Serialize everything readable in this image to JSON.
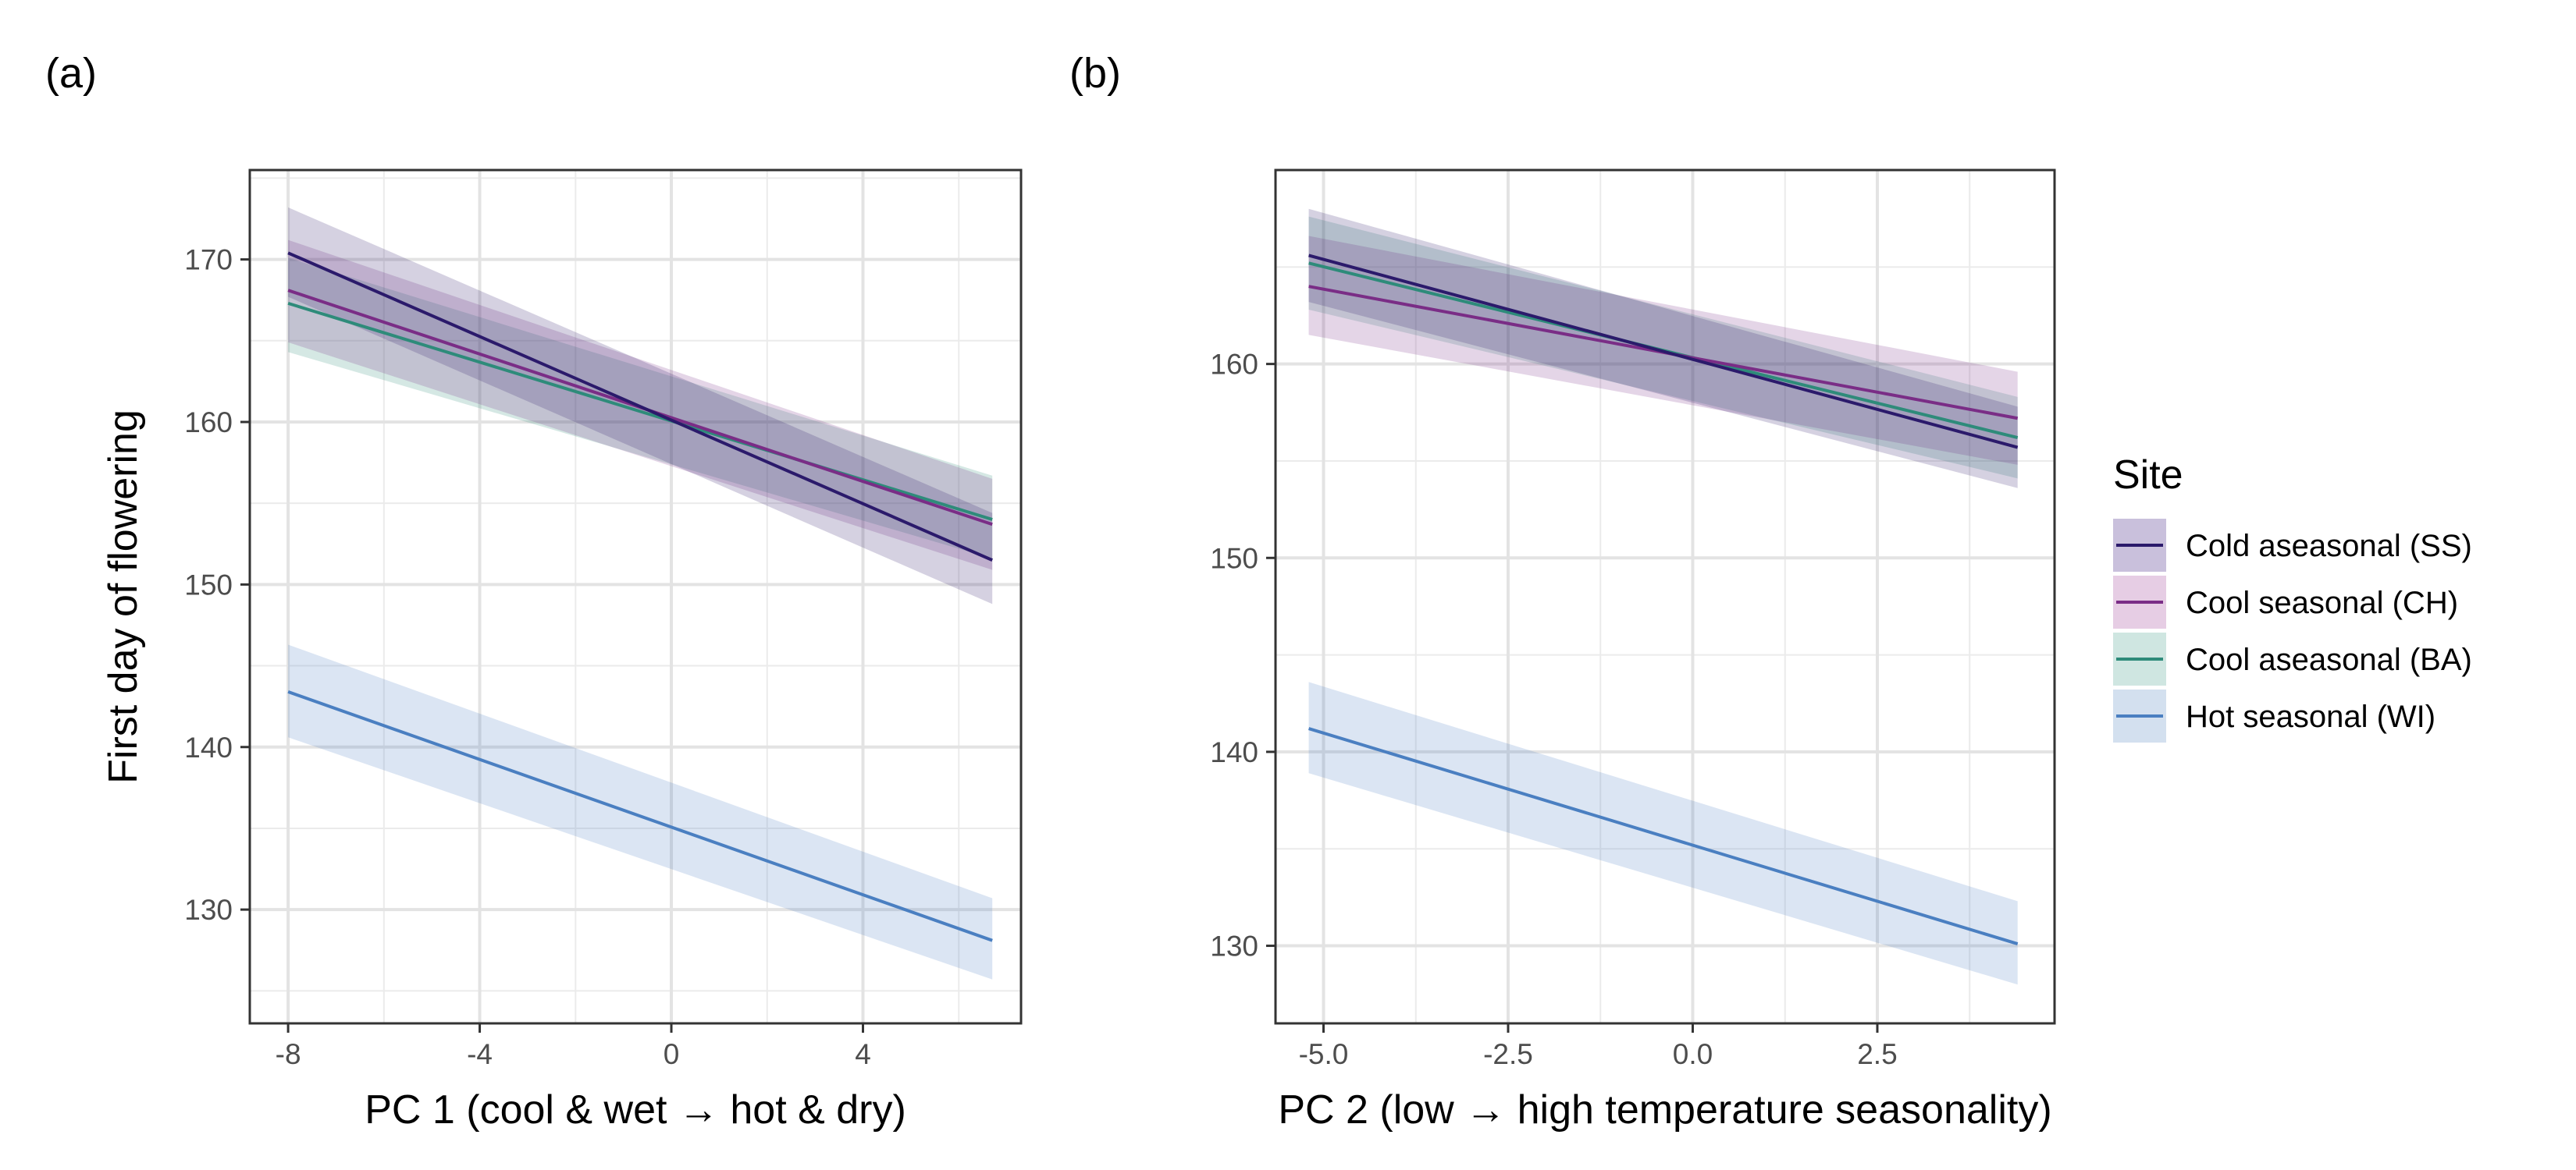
{
  "figure": {
    "legend": {
      "title": "Site",
      "entries": [
        {
          "label": "Cold aseasonal (SS)",
          "color": "#2b1a6b"
        },
        {
          "label": "Cool seasonal (CH)",
          "color": "#7a2d86"
        },
        {
          "label": "Cool aseasonal (BA)",
          "color": "#2e8b7a"
        },
        {
          "label": "Hot seasonal (WI)",
          "color": "#4a7fc1"
        }
      ],
      "fills": [
        "#c9c0dc",
        "#e6cde4",
        "#cfe6e1",
        "#d3e0ef"
      ]
    }
  },
  "chart_data": [
    {
      "panel_label": "(a)",
      "type": "line",
      "xlabel": "PC 1 (cool & wet → hot & dry)",
      "ylabel": "First day of flowering",
      "xlim": [
        -8.8,
        7.3
      ],
      "ylim": [
        123,
        175.5
      ],
      "xticks": [
        -8,
        -4,
        0,
        4
      ],
      "xtick_labels": [
        "-8",
        "-4",
        "0",
        "4"
      ],
      "xminor": [
        -6,
        -2,
        2,
        6
      ],
      "yticks": [
        130,
        140,
        150,
        160,
        170
      ],
      "ytick_labels": [
        "130",
        "140",
        "150",
        "160",
        "170"
      ],
      "yminor": [
        125,
        135,
        145,
        155,
        165,
        175
      ],
      "grid": true,
      "series": [
        {
          "name": "Cold aseasonal (SS)",
          "x": [
            -8,
            6.7
          ],
          "y": [
            170.4,
            151.5
          ],
          "lower": [
            167.7,
            148.8
          ],
          "upper": [
            173.2,
            154.4
          ]
        },
        {
          "name": "Cool seasonal (CH)",
          "x": [
            -8,
            6.7
          ],
          "y": [
            168.1,
            153.7
          ],
          "lower": [
            164.9,
            150.9
          ],
          "upper": [
            171.2,
            156.5
          ]
        },
        {
          "name": "Cool aseasonal (BA)",
          "x": [
            -8,
            6.7
          ],
          "y": [
            167.3,
            154.0
          ],
          "lower": [
            164.3,
            151.6
          ],
          "upper": [
            170.1,
            156.7
          ]
        },
        {
          "name": "Hot seasonal (WI)",
          "x": [
            -8,
            6.7
          ],
          "y": [
            143.4,
            128.1
          ],
          "lower": [
            140.6,
            125.7
          ],
          "upper": [
            146.3,
            130.7
          ]
        }
      ]
    },
    {
      "panel_label": "(b)",
      "type": "line",
      "xlabel": "PC 2 (low → high temperature seasonality)",
      "ylabel": "",
      "xlim": [
        -5.65,
        4.9
      ],
      "ylim": [
        126,
        170
      ],
      "xticks": [
        -5.0,
        -2.5,
        0.0,
        2.5
      ],
      "xtick_labels": [
        "-5.0",
        "-2.5",
        "0.0",
        "2.5"
      ],
      "xminor": [
        -3.75,
        -1.25,
        1.25,
        3.75
      ],
      "yticks": [
        130,
        140,
        150,
        160
      ],
      "ytick_labels": [
        "130",
        "140",
        "150",
        "160"
      ],
      "yminor": [
        135,
        145,
        155,
        165
      ],
      "grid": true,
      "series": [
        {
          "name": "Cold aseasonal (SS)",
          "x": [
            -5.2,
            4.4
          ],
          "y": [
            165.6,
            155.7
          ],
          "lower": [
            163.2,
            153.6
          ],
          "upper": [
            168.0,
            157.8
          ]
        },
        {
          "name": "Cool seasonal (CH)",
          "x": [
            -5.2,
            4.4
          ],
          "y": [
            164.0,
            157.2
          ],
          "lower": [
            161.5,
            154.8
          ],
          "upper": [
            166.6,
            159.6
          ]
        },
        {
          "name": "Cool aseasonal (BA)",
          "x": [
            -5.2,
            4.4
          ],
          "y": [
            165.2,
            156.2
          ],
          "lower": [
            162.8,
            154.1
          ],
          "upper": [
            167.6,
            158.3
          ]
        },
        {
          "name": "Hot seasonal (WI)",
          "x": [
            -5.2,
            4.4
          ],
          "y": [
            141.2,
            130.1
          ],
          "lower": [
            138.9,
            128.0
          ],
          "upper": [
            143.6,
            132.3
          ]
        }
      ]
    }
  ]
}
